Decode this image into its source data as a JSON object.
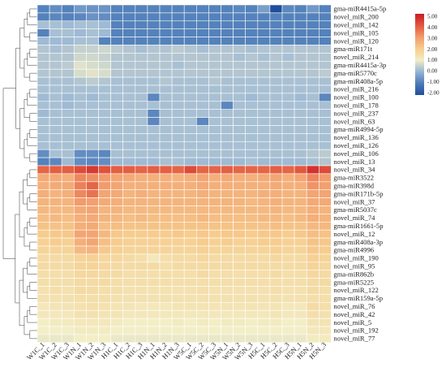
{
  "chart_data": {
    "type": "heatmap",
    "title": "",
    "xlabel": "",
    "ylabel": "",
    "columns": [
      "W1C_1",
      "W1C_2",
      "W1C_3",
      "W1N_1",
      "W1N_2",
      "W1N_3",
      "H1C_1",
      "H1C_2",
      "H1C_3",
      "H1N_1",
      "H1N_2",
      "H1N_3",
      "W5C_1",
      "W5C_2",
      "W5C_3",
      "W5N_1",
      "W5N_2",
      "W5N_3",
      "H5C_1",
      "H5C_2",
      "H5C_3",
      "H5N_1",
      "H5N_2",
      "H5N_3"
    ],
    "rows": [
      "gma-miR4415a-5p",
      "novel_miR_200",
      "novel_miR_142",
      "novel_miR_105",
      "novel_miR_120",
      "gma-miR171t",
      "novel_miR_214",
      "gma-miR4415a-3p",
      "gma-miR5770c",
      "gma-miR408a-5p",
      "novel_miR_216",
      "novel_miR_100",
      "novel_miR_178",
      "novel_miR_237",
      "novel_miR_63",
      "gma-miR4994-5p",
      "novel_miR_136",
      "novel_miR_126",
      "novel_miR_106",
      "novel_miR_13",
      "novel_miR_34",
      "gma-miR3522",
      "gma-miR398d",
      "gma-miR171b-5p",
      "novel_miR_37",
      "gma-miR5037c",
      "novel_miR_74",
      "gma-miR1661-5p",
      "novel_miR_12",
      "gma-miR408a-3p",
      "gma-miR4996",
      "novel_miR_190",
      "novel_miR_95",
      "gma-miR862b",
      "gma-miR5225",
      "novel_miR_122",
      "gma-miR159a-5p",
      "novel_miR_76",
      "novel_miR_42",
      "novel_miR_5",
      "novel_miR_192",
      "novel_miR_77"
    ],
    "values": [
      [
        -0.9,
        -0.7,
        -0.9,
        -0.5,
        -0.6,
        -0.6,
        -0.9,
        -0.9,
        -0.9,
        -0.9,
        -0.9,
        -0.9,
        -0.9,
        -0.9,
        -0.9,
        -0.9,
        -0.8,
        -0.9,
        -0.4,
        -2.0,
        -0.8,
        -0.9,
        -0.5,
        -0.9
      ],
      [
        -0.9,
        -0.8,
        -0.9,
        -0.8,
        -0.6,
        -0.7,
        -0.9,
        -0.9,
        -0.9,
        -0.9,
        -0.9,
        -0.9,
        -0.9,
        -0.9,
        -0.9,
        -0.9,
        -0.9,
        -0.9,
        -0.9,
        -0.9,
        -0.9,
        -0.9,
        -0.9,
        -0.9
      ],
      [
        0.2,
        0.2,
        0.1,
        0.2,
        0.2,
        0.1,
        -0.9,
        -0.9,
        -0.9,
        -0.9,
        -0.9,
        -0.9,
        -0.9,
        -0.9,
        -0.9,
        -0.9,
        -0.9,
        -0.9,
        -0.9,
        -0.9,
        -0.9,
        -0.9,
        -0.9,
        -0.9
      ],
      [
        -0.9,
        0.2,
        0.2,
        0.1,
        0.2,
        0.1,
        -0.9,
        -0.9,
        -0.9,
        -0.9,
        -0.9,
        -0.9,
        -0.9,
        -0.9,
        -0.9,
        -0.9,
        -0.9,
        -0.9,
        -0.9,
        -0.9,
        -0.9,
        -0.9,
        -0.9,
        -0.9
      ],
      [
        0.1,
        0.1,
        0.1,
        0.2,
        0.2,
        -0.9,
        -0.9,
        -0.9,
        -0.9,
        -0.9,
        -0.9,
        -0.9,
        -0.9,
        -0.9,
        -0.9,
        -0.9,
        -0.9,
        -0.9,
        -0.9,
        -0.9,
        -0.9,
        -0.9,
        -0.9,
        -0.9
      ],
      [
        0.3,
        0.2,
        0.3,
        0.5,
        0.5,
        0.6,
        0.4,
        0.3,
        0.2,
        0.3,
        0.3,
        0.4,
        0.3,
        0.2,
        0.3,
        0.3,
        0.3,
        0.2,
        0.3,
        0.3,
        0.3,
        0.3,
        0.3,
        0.3
      ],
      [
        0.3,
        0.3,
        0.3,
        0.6,
        0.6,
        0.5,
        0.3,
        0.3,
        0.3,
        0.3,
        0.3,
        0.3,
        0.3,
        0.3,
        0.3,
        0.3,
        0.2,
        0.3,
        0.2,
        0.3,
        0.2,
        0.3,
        0.3,
        0.3
      ],
      [
        0.3,
        0.3,
        0.4,
        0.8,
        0.7,
        0.6,
        0.3,
        0.3,
        0.3,
        0.3,
        0.3,
        0.2,
        0.3,
        0.3,
        0.3,
        0.3,
        0.3,
        0.3,
        0.3,
        0.3,
        0.3,
        0.3,
        0.3,
        0.3
      ],
      [
        0.3,
        0.3,
        0.3,
        0.7,
        0.8,
        0.7,
        0.3,
        0.3,
        0.3,
        0.3,
        0.3,
        0.3,
        0.3,
        0.3,
        0.3,
        0.3,
        0.3,
        0.3,
        0.3,
        0.3,
        0.3,
        0.3,
        0.3,
        0.4
      ],
      [
        0.2,
        0.2,
        0.2,
        0.3,
        0.4,
        0.3,
        0.2,
        0.2,
        0.2,
        0.2,
        0.3,
        0.2,
        0.2,
        0.2,
        0.3,
        0.2,
        0.2,
        0.2,
        0.2,
        0.2,
        0.2,
        0.2,
        0.2,
        0.2
      ],
      [
        0.2,
        0.2,
        0.2,
        0.2,
        0.2,
        0.2,
        0.2,
        0.2,
        0.2,
        0.2,
        0.2,
        0.2,
        0.2,
        0.2,
        0.2,
        0.2,
        0.2,
        0.2,
        0.2,
        0.2,
        0.2,
        0.2,
        0.2,
        0.2
      ],
      [
        0.1,
        0.2,
        0.1,
        0.2,
        0.1,
        0.2,
        0.2,
        0.2,
        0.2,
        -0.8,
        0.2,
        0.2,
        0.2,
        0.2,
        0.2,
        0.2,
        0.2,
        0.1,
        0.2,
        0.2,
        0.2,
        0.1,
        0.2,
        -0.8
      ],
      [
        0.2,
        0.2,
        0.1,
        0.2,
        0.2,
        0.2,
        0.2,
        0.2,
        0.2,
        0.2,
        0.2,
        0.2,
        0.2,
        0.2,
        0.2,
        -0.8,
        0.2,
        0.2,
        0.2,
        0.2,
        0.2,
        0.2,
        0.2,
        0.2
      ],
      [
        0.1,
        0.2,
        0.2,
        0.2,
        0.2,
        0.2,
        0.2,
        0.2,
        0.2,
        -0.8,
        0.2,
        0.2,
        0.2,
        0.2,
        0.2,
        0.2,
        0.2,
        0.2,
        0.2,
        0.2,
        0.2,
        0.2,
        0.2,
        0.2
      ],
      [
        0.2,
        0.2,
        0.2,
        0.2,
        0.2,
        0.2,
        0.2,
        0.2,
        0.2,
        -0.8,
        0.2,
        0.2,
        0.2,
        -0.8,
        0.2,
        0.2,
        0.2,
        0.2,
        0.2,
        0.2,
        0.2,
        0.2,
        0.2,
        0.2
      ],
      [
        0.2,
        0.2,
        0.2,
        0.2,
        0.2,
        0.2,
        0.2,
        0.2,
        0.2,
        0.2,
        0.2,
        0.2,
        0.2,
        0.2,
        0.2,
        0.2,
        0.2,
        0.2,
        0.2,
        0.2,
        0.2,
        0.2,
        0.2,
        0.2
      ],
      [
        0.2,
        0.2,
        0.2,
        0.2,
        0.2,
        0.2,
        0.2,
        0.2,
        0.2,
        0.2,
        0.2,
        0.2,
        0.2,
        0.2,
        0.2,
        0.2,
        0.2,
        0.2,
        0.2,
        0.2,
        0.2,
        0.2,
        0.2,
        0.2
      ],
      [
        0.2,
        0.2,
        0.2,
        0.2,
        0.2,
        0.2,
        0.2,
        0.2,
        0.2,
        0.2,
        0.2,
        0.2,
        0.2,
        0.2,
        0.2,
        0.2,
        0.2,
        0.2,
        0.2,
        0.2,
        0.2,
        0.2,
        0.2,
        0.2
      ],
      [
        -0.7,
        0.2,
        0.2,
        -0.7,
        -0.7,
        -0.8,
        0.2,
        0.2,
        0.2,
        0.2,
        0.2,
        0.2,
        0.2,
        0.2,
        0.2,
        0.2,
        0.2,
        0.2,
        0.2,
        0.2,
        0.2,
        0.2,
        0.3,
        0.4
      ],
      [
        -0.9,
        -0.8,
        0.1,
        -0.7,
        -0.8,
        -0.7,
        0.1,
        0.1,
        0.1,
        0.1,
        0.2,
        0.2,
        0.1,
        0.1,
        0.1,
        0.1,
        0.1,
        0.2,
        0.1,
        0.1,
        0.1,
        0.1,
        0.2,
        0.3
      ],
      [
        3.8,
        3.9,
        3.9,
        4.2,
        4.5,
        4.1,
        3.9,
        3.9,
        3.8,
        3.9,
        3.9,
        3.8,
        4.2,
        3.8,
        3.8,
        3.9,
        3.8,
        3.8,
        3.8,
        3.9,
        3.8,
        4.0,
        4.6,
        4.2
      ],
      [
        2.7,
        2.7,
        2.6,
        3.3,
        3.2,
        3.0,
        2.8,
        2.7,
        2.6,
        2.6,
        2.6,
        2.5,
        2.6,
        2.8,
        2.6,
        2.7,
        2.6,
        2.6,
        2.7,
        2.8,
        2.6,
        2.8,
        3.3,
        3.0
      ],
      [
        2.6,
        2.7,
        2.7,
        3.4,
        3.8,
        3.0,
        2.8,
        2.6,
        2.6,
        2.6,
        2.6,
        2.6,
        2.6,
        2.7,
        2.6,
        2.6,
        2.6,
        2.6,
        2.6,
        2.7,
        2.6,
        2.6,
        3.1,
        2.9
      ],
      [
        2.6,
        2.5,
        2.6,
        3.3,
        3.6,
        2.8,
        2.7,
        2.5,
        2.6,
        2.5,
        2.5,
        2.5,
        2.5,
        2.6,
        2.5,
        2.5,
        2.5,
        2.5,
        2.6,
        2.6,
        2.5,
        2.5,
        2.8,
        2.8
      ],
      [
        2.5,
        2.5,
        2.5,
        3.0,
        2.9,
        2.7,
        2.6,
        2.5,
        2.5,
        2.5,
        2.5,
        2.5,
        2.5,
        2.5,
        2.5,
        2.5,
        2.5,
        2.4,
        2.5,
        2.6,
        2.5,
        2.5,
        2.7,
        2.7
      ],
      [
        2.4,
        2.4,
        2.4,
        2.7,
        2.8,
        2.5,
        2.5,
        2.4,
        2.4,
        2.4,
        2.4,
        2.4,
        2.4,
        2.4,
        2.4,
        2.4,
        2.4,
        2.4,
        2.4,
        2.5,
        2.4,
        2.4,
        2.6,
        2.5
      ],
      [
        2.3,
        2.4,
        2.3,
        2.6,
        2.7,
        2.5,
        2.4,
        2.3,
        2.4,
        2.3,
        2.3,
        2.3,
        2.3,
        2.4,
        2.3,
        2.3,
        2.3,
        2.3,
        2.4,
        2.4,
        2.3,
        2.4,
        2.6,
        2.5
      ],
      [
        2.2,
        2.2,
        2.2,
        2.6,
        2.7,
        2.3,
        2.3,
        2.2,
        2.2,
        2.2,
        2.2,
        2.2,
        2.2,
        2.2,
        2.2,
        2.2,
        2.2,
        2.2,
        2.2,
        2.3,
        2.2,
        2.2,
        2.4,
        2.4
      ],
      [
        2.0,
        2.1,
        2.1,
        2.8,
        2.8,
        2.4,
        2.1,
        2.0,
        2.0,
        2.0,
        2.0,
        2.1,
        2.0,
        2.1,
        2.0,
        2.1,
        2.1,
        2.0,
        2.1,
        2.1,
        2.0,
        2.1,
        2.3,
        2.2
      ],
      [
        1.9,
        2.0,
        1.9,
        2.6,
        2.8,
        2.3,
        2.0,
        1.9,
        1.9,
        1.9,
        1.9,
        1.9,
        1.9,
        2.0,
        1.9,
        2.0,
        1.9,
        1.9,
        2.0,
        2.0,
        1.9,
        1.9,
        2.2,
        2.1
      ],
      [
        1.8,
        1.8,
        1.8,
        2.4,
        2.5,
        2.1,
        1.9,
        1.8,
        1.8,
        1.8,
        1.8,
        1.8,
        1.8,
        1.9,
        1.8,
        1.8,
        1.8,
        1.8,
        1.8,
        1.9,
        1.8,
        1.8,
        2.1,
        2.0
      ],
      [
        1.6,
        1.6,
        1.6,
        1.8,
        1.9,
        1.7,
        1.7,
        1.6,
        1.5,
        1.2,
        1.5,
        1.6,
        1.6,
        1.7,
        1.6,
        1.6,
        1.6,
        1.6,
        1.6,
        1.7,
        1.6,
        1.6,
        1.9,
        1.8
      ],
      [
        1.6,
        1.6,
        1.6,
        1.8,
        1.8,
        1.7,
        1.6,
        1.6,
        1.6,
        1.6,
        1.5,
        1.6,
        1.6,
        1.6,
        1.6,
        1.6,
        1.6,
        1.6,
        1.6,
        1.6,
        1.6,
        1.6,
        1.8,
        1.7
      ],
      [
        1.5,
        1.5,
        1.5,
        1.7,
        1.7,
        1.6,
        1.6,
        1.5,
        1.5,
        1.5,
        1.5,
        1.5,
        1.5,
        1.6,
        1.5,
        1.5,
        1.5,
        1.5,
        1.5,
        1.6,
        1.5,
        1.5,
        1.7,
        1.6
      ],
      [
        1.5,
        1.5,
        1.5,
        1.6,
        1.6,
        1.6,
        1.5,
        1.5,
        1.5,
        1.5,
        1.5,
        1.5,
        1.5,
        1.5,
        1.5,
        1.5,
        1.5,
        1.5,
        1.5,
        1.5,
        1.5,
        1.5,
        1.6,
        1.6
      ],
      [
        1.4,
        1.5,
        1.4,
        1.6,
        1.6,
        1.5,
        1.5,
        1.4,
        1.4,
        1.4,
        1.4,
        1.4,
        1.4,
        1.5,
        1.4,
        1.4,
        1.4,
        1.4,
        1.4,
        1.5,
        1.4,
        1.4,
        1.6,
        1.5
      ],
      [
        1.4,
        1.4,
        1.4,
        1.5,
        1.5,
        1.5,
        1.4,
        1.4,
        1.4,
        1.4,
        1.4,
        1.4,
        1.4,
        1.4,
        1.4,
        1.4,
        1.4,
        1.4,
        1.4,
        1.4,
        1.4,
        1.4,
        1.5,
        1.5
      ],
      [
        1.2,
        1.3,
        1.3,
        1.4,
        1.5,
        1.4,
        1.3,
        1.3,
        1.2,
        1.2,
        1.2,
        1.3,
        1.3,
        1.3,
        1.3,
        1.3,
        1.3,
        1.3,
        1.3,
        1.3,
        1.2,
        1.2,
        1.6,
        1.5
      ],
      [
        1.2,
        1.2,
        1.2,
        1.4,
        1.4,
        1.3,
        1.3,
        1.2,
        1.2,
        1.2,
        1.2,
        1.2,
        1.2,
        1.2,
        1.2,
        1.2,
        1.2,
        1.2,
        1.2,
        1.3,
        1.2,
        1.2,
        1.5,
        1.4
      ],
      [
        1.0,
        1.1,
        1.1,
        1.2,
        1.2,
        1.2,
        1.1,
        1.0,
        1.0,
        1.0,
        1.0,
        1.1,
        1.0,
        1.1,
        1.0,
        1.1,
        1.1,
        1.0,
        1.1,
        1.1,
        1.0,
        1.0,
        1.3,
        1.3
      ],
      [
        1.0,
        1.0,
        1.0,
        1.1,
        1.1,
        1.1,
        1.0,
        1.0,
        1.0,
        1.0,
        1.0,
        1.0,
        1.0,
        1.0,
        1.0,
        1.0,
        1.0,
        1.0,
        1.0,
        1.0,
        1.0,
        1.0,
        1.2,
        1.2
      ],
      [
        0.9,
        0.9,
        0.9,
        1.0,
        1.0,
        1.0,
        0.9,
        0.9,
        0.9,
        0.9,
        0.9,
        0.9,
        0.9,
        0.9,
        0.9,
        0.9,
        0.9,
        0.9,
        0.9,
        0.9,
        0.9,
        0.9,
        1.1,
        1.1
      ]
    ],
    "colorbar": {
      "ticks": [
        "5.00",
        "4.00",
        "3.00",
        "2.00",
        "1.00",
        "0.00",
        "-1.00",
        "-2.00"
      ],
      "range": [
        -2,
        5
      ],
      "colors": [
        "#1f4e9c",
        "#4d7cb8",
        "#96b4d6",
        "#f2eec6",
        "#f6cd8e",
        "#f29b6c",
        "#e2583e",
        "#c91b25"
      ]
    },
    "grid": true,
    "row_dendrogram": true,
    "legend_position": "top-right"
  }
}
